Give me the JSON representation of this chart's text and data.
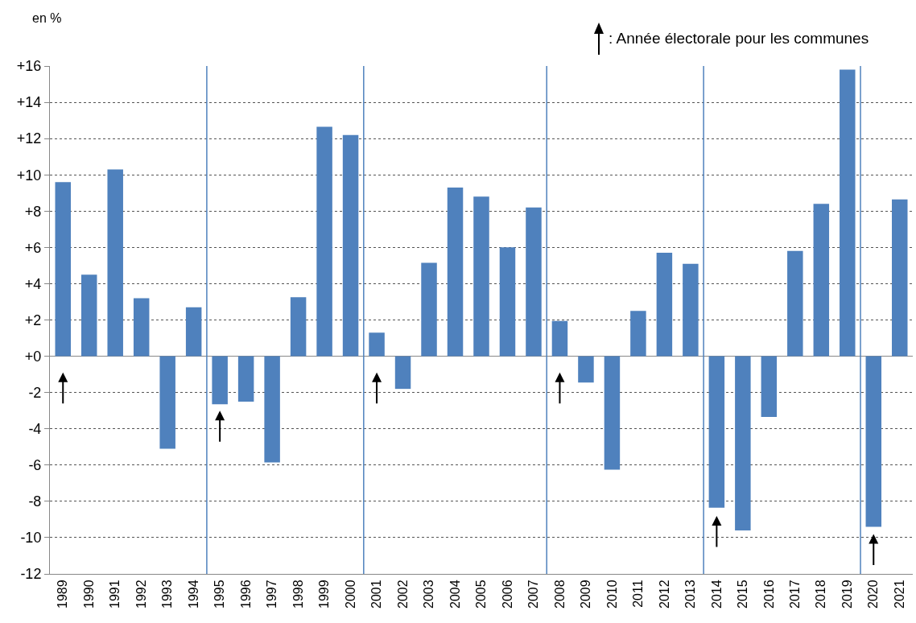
{
  "chart_data": {
    "type": "bar",
    "ylabel": "en %",
    "categories": [
      "1989",
      "1990",
      "1991",
      "1992",
      "1993",
      "1994",
      "1995",
      "1996",
      "1997",
      "1998",
      "1999",
      "2000",
      "2001",
      "2002",
      "2003",
      "2004",
      "2005",
      "2006",
      "2007",
      "2008",
      "2009",
      "2010",
      "2011",
      "2012",
      "2013",
      "2014",
      "2015",
      "2016",
      "2017",
      "2018",
      "2019",
      "2020",
      "2021"
    ],
    "values": [
      9.6,
      4.5,
      10.3,
      3.2,
      -5.1,
      2.7,
      -2.65,
      -2.5,
      -5.85,
      3.25,
      12.65,
      12.2,
      1.3,
      -1.8,
      5.15,
      9.3,
      8.8,
      6.0,
      8.2,
      1.95,
      -1.45,
      -6.25,
      2.5,
      5.7,
      5.1,
      -8.35,
      -9.6,
      -3.35,
      5.8,
      8.4,
      15.8,
      -9.4,
      8.65
    ],
    "color": "#4f81bd",
    "ylim": [
      -12,
      16
    ],
    "yticks": [
      {
        "value": 16,
        "label": "+16"
      },
      {
        "value": 14,
        "label": "+14"
      },
      {
        "value": 12,
        "label": "+12"
      },
      {
        "value": 10,
        "label": "+10"
      },
      {
        "value": 8,
        "label": "+8"
      },
      {
        "value": 6,
        "label": "+6"
      },
      {
        "value": 4,
        "label": "+4"
      },
      {
        "value": 2,
        "label": "+2"
      },
      {
        "value": 0,
        "label": "+0"
      },
      -2,
      -4,
      -6,
      -8,
      -10,
      -12
    ],
    "grid": "y",
    "annotations": [
      ": Année électorale pour les communes"
    ]
  }
}
